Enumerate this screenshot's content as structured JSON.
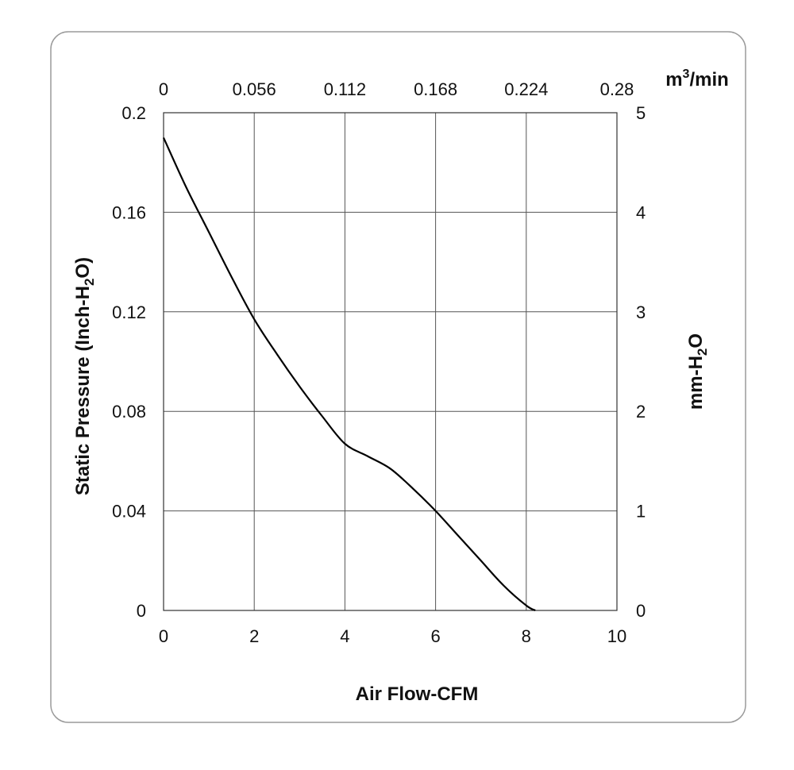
{
  "chart_data": {
    "type": "line",
    "xlabel": "Air Flow-CFM",
    "ylabel_left": "Static Pressure (Inch-H2O)",
    "ylabel_right": "mm-H2O",
    "top_axis_label": "m3/min",
    "xlim": [
      0,
      10
    ],
    "ylim": [
      0,
      0.2
    ],
    "ylim_right": [
      0,
      5
    ],
    "xlim_top": [
      0,
      0.28
    ],
    "x_ticks": [
      "0",
      "2",
      "4",
      "6",
      "8",
      "10"
    ],
    "top_ticks": [
      "0",
      "0.056",
      "0.112",
      "0.168",
      "0.224",
      "0.28"
    ],
    "y_ticks_left": [
      "0",
      "0.04",
      "0.08",
      "0.12",
      "0.16",
      "0.2"
    ],
    "y_ticks_right": [
      "0",
      "1",
      "2",
      "3",
      "4",
      "5"
    ],
    "grid": true,
    "series": [
      {
        "x": [
          0,
          0.5,
          1.0,
          1.5,
          2.0,
          2.5,
          3.0,
          3.5,
          4.0,
          4.5,
          5.0,
          5.5,
          6.0,
          6.5,
          7.0,
          7.5,
          8.0,
          8.2
        ],
        "y": [
          0.19,
          0.17,
          0.152,
          0.134,
          0.117,
          0.103,
          0.09,
          0.078,
          0.067,
          0.062,
          0.057,
          0.049,
          0.04,
          0.03,
          0.02,
          0.01,
          0.002,
          0.0
        ]
      }
    ],
    "line_color": "#000000",
    "grid_color": "#555555",
    "frame_color": "#999999"
  }
}
